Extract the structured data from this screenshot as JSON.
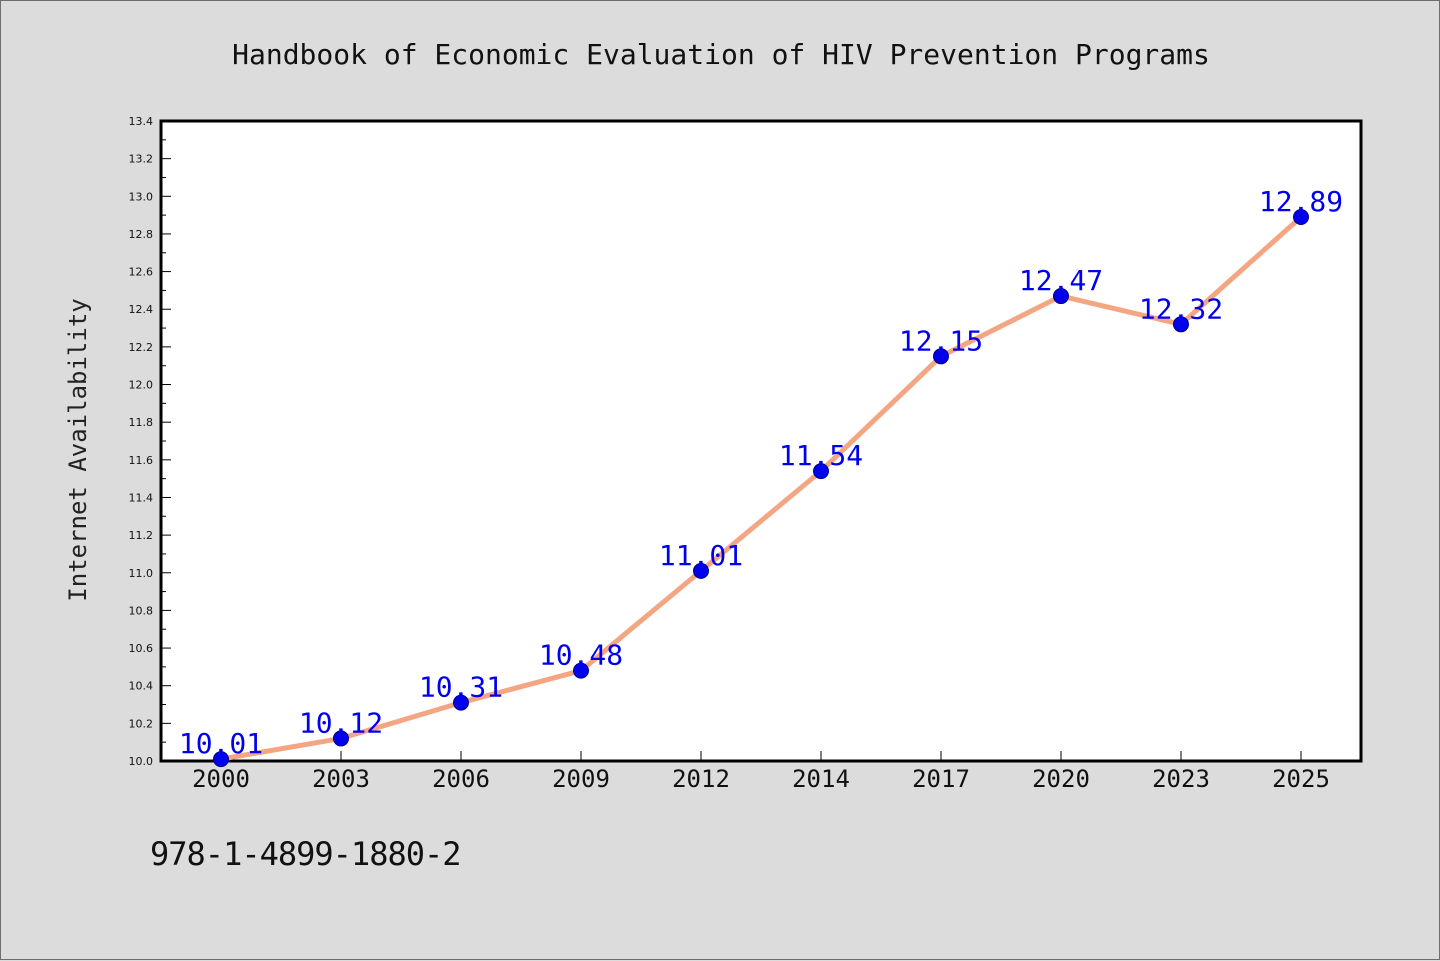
{
  "chart_data": {
    "type": "line",
    "title": "Handbook of Economic Evaluation of HIV Prevention Programs",
    "xlabel": "",
    "ylabel": "Internet Availability",
    "categories": [
      "2000",
      "2003",
      "2006",
      "2009",
      "2012",
      "2014",
      "2017",
      "2020",
      "2023",
      "2025"
    ],
    "values": [
      10.01,
      10.12,
      10.31,
      10.48,
      11.01,
      11.54,
      12.15,
      12.47,
      12.32,
      12.89
    ],
    "data_labels": [
      "10.01",
      "10.12",
      "10.31",
      "10.48",
      "11.01",
      "11.54",
      "12.15",
      "12.47",
      "12.32",
      "12.89"
    ],
    "ylim": [
      10.0,
      13.4
    ],
    "yticks": [
      "10.0",
      "10.2",
      "10.4",
      "10.6",
      "10.8",
      "11.0",
      "11.2",
      "11.4",
      "11.6",
      "11.8",
      "12.0",
      "12.2",
      "12.4",
      "12.6",
      "12.8",
      "13.0",
      "13.2",
      "13.4"
    ],
    "grid": false,
    "line_color": "#f4a582",
    "marker_color": "#0000ee",
    "label_color": "#0000ee"
  },
  "footer": {
    "isbn": "978-1-4899-1880-2"
  }
}
